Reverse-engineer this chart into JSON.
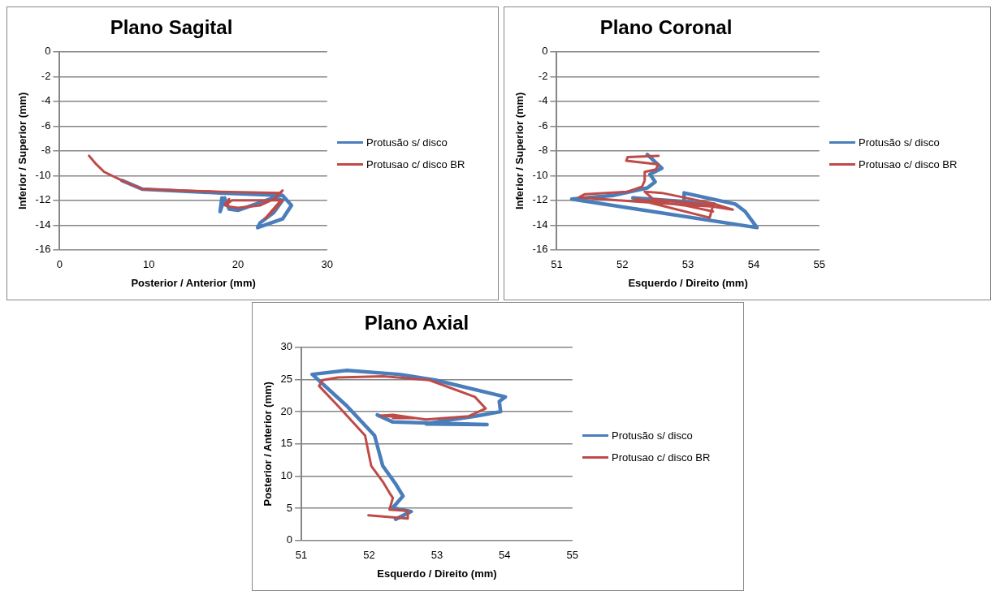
{
  "chart_data": [
    {
      "type": "line",
      "title": "Plano Sagital",
      "xlabel": "Posterior / Anterior (mm)",
      "ylabel": "Inferior / Superior (mm)",
      "xlim": [
        0,
        30
      ],
      "xticks": [
        0,
        10,
        20,
        30
      ],
      "ylim": [
        -16,
        0
      ],
      "yticks": [
        -16,
        -14,
        -12,
        -10,
        -8,
        -6,
        -4,
        -2,
        0
      ],
      "grid": "y",
      "legend": "right",
      "marker": "none",
      "series": [
        {
          "name": "Protusão s/ disco",
          "color": "#4a7ebb",
          "x": [
            7,
            9.3,
            18,
            25,
            26,
            25,
            22.2,
            22.5,
            24,
            25,
            24,
            22,
            20,
            19,
            18.5,
            18,
            18.2
          ],
          "values": [
            -10.4,
            -11.1,
            -11.4,
            -11.6,
            -12.4,
            -13.5,
            -14.2,
            -13.8,
            -13,
            -12,
            -11.8,
            -12.3,
            -12.8,
            -12.7,
            -11.8,
            -12.9,
            -11.8
          ]
        },
        {
          "name": "Protusao c/ disco BR",
          "color": "#be4b48",
          "x": [
            3.3,
            4,
            5,
            7,
            9.3,
            18,
            24.8,
            25,
            24,
            22.5,
            20,
            19,
            18.5,
            19,
            18.6,
            19.3,
            25,
            24,
            23,
            24.7
          ],
          "values": [
            -8.4,
            -9,
            -9.7,
            -10.4,
            -11.1,
            -11.3,
            -11.4,
            -11.2,
            -11.9,
            -12.4,
            -12.6,
            -12.5,
            -12.4,
            -11.9,
            -12.4,
            -12,
            -12,
            -12.8,
            -13.5,
            -12.1
          ]
        }
      ]
    },
    {
      "type": "line",
      "title": "Plano Coronal",
      "xlabel": "Esquerdo / Direito (mm)",
      "ylabel": "Inferior / Superior (mm)",
      "xlim": [
        51,
        55
      ],
      "xticks": [
        51,
        52,
        53,
        54,
        55
      ],
      "ylim": [
        -16,
        0
      ],
      "yticks": [
        -16,
        -14,
        -12,
        -10,
        -8,
        -6,
        -4,
        -2,
        0
      ],
      "grid": "y",
      "legend": "right",
      "marker": "none",
      "series": [
        {
          "name": "Protusão s/ disco",
          "color": "#4a7ebb",
          "x": [
            52.38,
            52.6,
            52.42,
            52.5,
            52.38,
            51.86,
            51.23,
            54.05,
            53.87,
            53.72,
            52.94,
            52.94,
            52.16,
            53.4
          ],
          "values": [
            -8.3,
            -9.4,
            -9.9,
            -10.5,
            -11,
            -11.6,
            -11.9,
            -14.2,
            -12.9,
            -12.3,
            -11.4,
            -12.1,
            -11.8,
            -12.3
          ]
        },
        {
          "name": "Protusao c/ disco BR",
          "color": "#be4b48",
          "x": [
            52.55,
            52.08,
            52.06,
            52.55,
            52.51,
            52.34,
            52.34,
            52.3,
            52.08,
            51.43,
            51.34,
            52.2,
            53.38,
            53.68,
            53.38,
            52.6,
            52.34,
            52.47,
            53.38,
            53.33,
            52.2,
            52.94,
            53.38
          ],
          "values": [
            -8.4,
            -8.5,
            -8.8,
            -9.1,
            -9.5,
            -9.7,
            -10.4,
            -10.9,
            -11.3,
            -11.5,
            -11.75,
            -12.1,
            -12.5,
            -12.75,
            -12.25,
            -11.4,
            -11.3,
            -11.9,
            -12.4,
            -13.4,
            -11.9,
            -12.4,
            -12.9
          ]
        }
      ]
    },
    {
      "type": "line",
      "title": "Plano Axial",
      "xlabel": "Esquerdo / Direito (mm)",
      "ylabel": "Posterior / Anterior (mm)",
      "xlim": [
        51,
        55
      ],
      "xticks": [
        51,
        52,
        53,
        54,
        55
      ],
      "ylim": [
        0,
        30
      ],
      "yticks": [
        0,
        5,
        10,
        15,
        20,
        25,
        30
      ],
      "grid": "y",
      "legend": "right",
      "marker": "none",
      "series": [
        {
          "name": "Protusão s/ disco",
          "color": "#4a7ebb",
          "x": [
            52.39,
            52.62,
            52.35,
            52.5,
            52.39,
            52.2,
            52.08,
            51.67,
            51.16,
            51.67,
            52.44,
            52.98,
            54.01,
            53.92,
            53.94,
            53.56,
            53.11,
            52.84,
            53.74,
            52.35,
            52.12
          ],
          "values": [
            3.3,
            4.5,
            5.1,
            6.9,
            8.8,
            11.6,
            16.3,
            20.9,
            25.8,
            26.4,
            25.8,
            24.9,
            22.3,
            21.6,
            20,
            19.3,
            18.6,
            18.1,
            18,
            18.4,
            19.5
          ]
        },
        {
          "name": "Protusao c/ disco BR",
          "color": "#be4b48",
          "x": [
            51.99,
            52.57,
            52.57,
            52.3,
            52.35,
            52.3,
            52.21,
            52.03,
            51.94,
            51.54,
            51.26,
            51.31,
            51.54,
            52.21,
            52.89,
            53.56,
            53.72,
            53.47,
            52.84,
            52.35,
            52.17,
            52.66,
            52.35
          ],
          "values": [
            3.9,
            3.4,
            4.6,
            4.8,
            6.6,
            7.4,
            9,
            11.6,
            16.3,
            20.9,
            24,
            24.9,
            25.3,
            25.5,
            24.9,
            22.3,
            20.5,
            19.3,
            18.8,
            19.5,
            19.4,
            19,
            19
          ]
        }
      ]
    }
  ]
}
